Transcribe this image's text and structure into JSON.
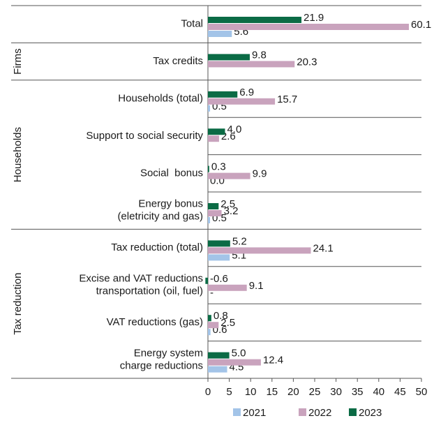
{
  "chart_data": {
    "type": "bar",
    "orientation": "horizontal",
    "categories": [
      "Total",
      "Tax credits",
      "Households (total)",
      "Support to social security",
      "Social  bonus",
      "Energy bonus\n(eletricity and gas)",
      "Tax reduction (total)",
      "Excise and VAT reductions\ntransportation (oil, fuel)",
      "VAT reductions (gas)",
      "Energy system\ncharge reductions"
    ],
    "category_groups": [
      null,
      "Firms",
      "Households",
      "Households",
      "Households",
      "Households",
      "Tax reduction",
      "Tax reduction",
      "Tax reduction",
      "Tax reduction"
    ],
    "series": [
      {
        "name": "2021",
        "color": "#a3c4e8",
        "values": [
          5.6,
          null,
          0.5,
          null,
          0,
          0.5,
          5.1,
          null,
          0.6,
          4.5
        ],
        "value_labels": [
          "5.6",
          null,
          "0.5",
          null,
          "0.0",
          "0.5",
          "5.1",
          "-",
          "0.6",
          "4.5"
        ]
      },
      {
        "name": "2022",
        "color": "#c9a3bd",
        "values": [
          60.1,
          20.3,
          15.7,
          2.6,
          9.9,
          3.2,
          24.1,
          9.1,
          2.5,
          12.4
        ],
        "value_labels": [
          "60.1",
          "20.3",
          "15.7",
          "2.6",
          "9.9",
          "3.2",
          "24.1",
          "9.1",
          "2.5",
          "12.4"
        ]
      },
      {
        "name": "2023",
        "color": "#0b6b45",
        "values": [
          21.9,
          9.8,
          6.9,
          4,
          0.3,
          2.5,
          5.2,
          -0.6,
          0.8,
          5
        ],
        "value_labels": [
          "21.9",
          "9.8",
          "6.9",
          "4.0",
          "0.3",
          "2.5",
          "5.2",
          "-0.6",
          "0.8",
          "5.0"
        ]
      }
    ],
    "xlim": [
      0,
      50
    ],
    "xticks": [
      0,
      5,
      10,
      15,
      20,
      25,
      30,
      35,
      40,
      45,
      50
    ],
    "legend": "bottom"
  }
}
